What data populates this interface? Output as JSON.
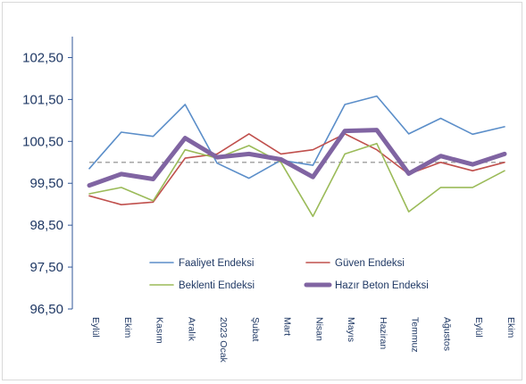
{
  "chart_data": {
    "type": "line",
    "title": "",
    "xlabel": "",
    "ylabel": "",
    "ylim": [
      96.5,
      103.0
    ],
    "yticks": [
      "96,50",
      "97,50",
      "98,50",
      "99,50",
      "100,50",
      "101,50",
      "102,50"
    ],
    "ytick_values": [
      96.5,
      97.5,
      98.5,
      99.5,
      100.5,
      101.5,
      102.5
    ],
    "categories": [
      "Eylül",
      "Ekim",
      "Kasım",
      "Aralık",
      "2023 Ocak",
      "Şubat",
      "Mart",
      "Nisan",
      "Mayıs",
      "Haziran",
      "Temmuz",
      "Ağustos",
      "Eylül",
      "Ekim"
    ],
    "reference_line": {
      "value": 100.0,
      "style": "dashed",
      "color": "#a6a6a6"
    },
    "legend_position": "bottom-center",
    "grid": false,
    "series": [
      {
        "name": "Faaliyet Endeksi",
        "color": "#5b8ec9",
        "width": 1.6,
        "values": [
          99.85,
          100.72,
          100.62,
          101.38,
          99.98,
          99.62,
          100.05,
          99.93,
          101.38,
          101.58,
          100.68,
          101.05,
          100.67,
          100.85
        ]
      },
      {
        "name": "Güven Endeksi",
        "color": "#c0504d",
        "width": 1.6,
        "values": [
          99.2,
          98.99,
          99.05,
          100.1,
          100.2,
          100.68,
          100.2,
          100.3,
          100.68,
          100.3,
          99.72,
          100.0,
          99.8,
          100.0
        ]
      },
      {
        "name": "Beklenti Endeksi",
        "color": "#9bbb59",
        "width": 1.6,
        "values": [
          99.25,
          99.4,
          99.08,
          100.3,
          100.1,
          100.4,
          100.0,
          98.71,
          100.2,
          100.45,
          98.82,
          99.4,
          99.4,
          99.8
        ]
      },
      {
        "name": "Hazır Beton Endeksi",
        "color": "#8064a2",
        "width": 5,
        "values": [
          99.45,
          99.72,
          99.6,
          100.58,
          100.12,
          100.2,
          100.07,
          99.65,
          100.75,
          100.77,
          99.73,
          100.15,
          99.95,
          100.2
        ]
      }
    ]
  }
}
